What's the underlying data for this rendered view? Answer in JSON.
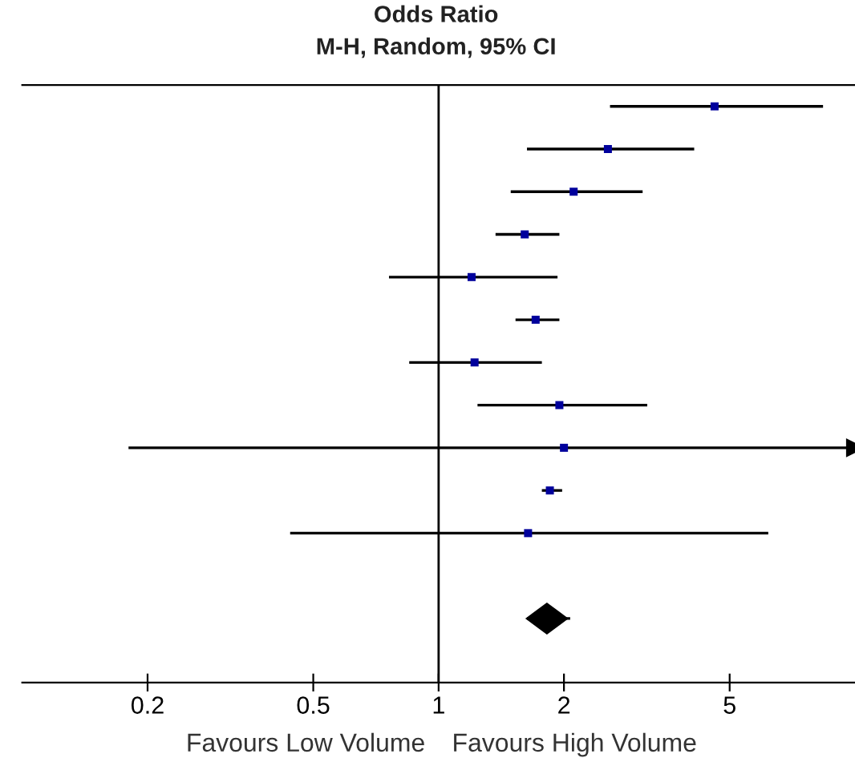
{
  "chart_data": {
    "type": "scatter",
    "title": "Odds Ratio",
    "subtitle": "M-H, Random, 95% CI",
    "orientation": "horizontal",
    "log": "x",
    "xlim": [
      0.1,
      10
    ],
    "xticks": [
      0.2,
      0.5,
      1,
      2,
      5
    ],
    "tick_labels": "x",
    "grid": false,
    "legend": false,
    "categories": [
      null,
      null,
      null,
      null,
      null,
      null,
      null,
      null,
      null,
      null,
      null,
      null,
      null,
      null
    ],
    "series": [
      {
        "color": "#00009c",
        "marker": "square",
        "values": [
          4.6,
          2.55,
          2.11,
          1.61,
          1.2,
          1.71,
          1.22,
          1.95,
          2.0,
          1.85,
          1.64,
          null,
          null,
          null
        ],
        "errors": [
          [
            2.58,
            8.38
          ],
          [
            1.63,
            4.11
          ],
          [
            1.49,
            3.09
          ],
          [
            1.37,
            1.95
          ],
          [
            0.76,
            1.93
          ],
          [
            1.53,
            1.95
          ],
          [
            0.85,
            1.77
          ],
          [
            1.24,
            3.17
          ],
          [
            0.18,
            10
          ],
          [
            1.77,
            1.98
          ],
          [
            0.44,
            6.19
          ],
          null,
          null,
          null
        ]
      },
      {
        "color": "#000000",
        "marker": "diamond",
        "values": [
          null,
          null,
          null,
          null,
          null,
          null,
          null,
          null,
          null,
          null,
          null,
          null,
          1.82,
          null
        ],
        "errors": [
          null,
          null,
          null,
          null,
          null,
          null,
          null,
          null,
          null,
          null,
          null,
          null,
          [
            1.63,
            2.07
          ],
          null
        ]
      }
    ],
    "ref_lines": [
      {
        "axis": "x",
        "value": 1,
        "color": "#000000",
        "line_style": "solid"
      }
    ],
    "annotations": [
      "Favours Low Volume",
      "Favours High Volume"
    ]
  }
}
